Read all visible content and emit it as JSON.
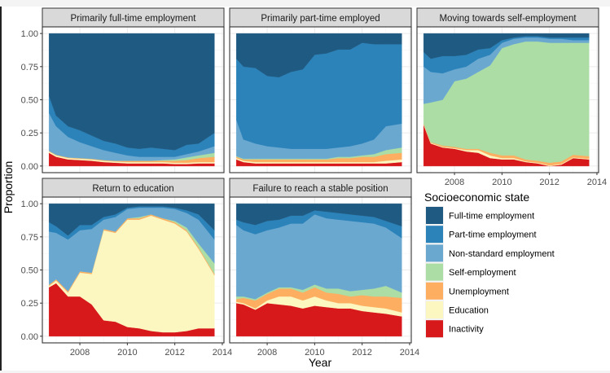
{
  "chart_data": {
    "type": "area",
    "subtype": "stacked-proportion-facets",
    "xlabel": "Year",
    "ylabel": "Proportion",
    "xlim": [
      2006.42,
      2014.07
    ],
    "ylim": [
      -0.05,
      1.05
    ],
    "x_ticks": [
      2008,
      2010,
      2012,
      2014
    ],
    "x_tick_labels": [
      "2008",
      "2010",
      "2012",
      "2014"
    ],
    "y_ticks": [
      0,
      0.25,
      0.5,
      0.75,
      1.0
    ],
    "y_tick_labels": [
      "0.00",
      "0.25",
      "0.50",
      "0.75",
      "1.00"
    ],
    "grid": true,
    "legend": {
      "title": "Socioeconomic state",
      "placement": "bottom-right",
      "entries": [
        {
          "name": "Full-time employment",
          "color": "#1f5a82"
        },
        {
          "name": "Part-time employment",
          "color": "#2b83ba"
        },
        {
          "name": "Non-standard employment",
          "color": "#6ba8d0"
        },
        {
          "name": "Self-employment",
          "color": "#abdda4"
        },
        {
          "name": "Unemployment",
          "color": "#fdae61"
        },
        {
          "name": "Education",
          "color": "#fcf7c0"
        },
        {
          "name": "Inactivity",
          "color": "#d7191c"
        }
      ]
    },
    "stack_order_bottom_to_top": [
      "Inactivity",
      "Education",
      "Unemployment",
      "Self-employment",
      "Non-standard employment",
      "Part-time employment",
      "Full-time employment"
    ],
    "x": [
      2006.7,
      2007.0,
      2007.5,
      2008.0,
      2008.5,
      2009.0,
      2009.5,
      2010.0,
      2010.5,
      2011.0,
      2011.5,
      2012.0,
      2012.5,
      2013.0,
      2013.67
    ],
    "panels": [
      {
        "title": "Primarily full-time employment",
        "series": [
          {
            "name": "Inactivity",
            "values": [
              0.1,
              0.07,
              0.05,
              0.045,
              0.04,
              0.03,
              0.025,
              0.02,
              0.02,
              0.02,
              0.02,
              0.015,
              0.015,
              0.02,
              0.02
            ]
          },
          {
            "name": "Education",
            "values": [
              0.01,
              0.01,
              0.01,
              0.01,
              0.01,
              0.01,
              0.01,
              0.01,
              0.01,
              0.01,
              0.01,
              0.01,
              0.01,
              0.01,
              0.01
            ]
          },
          {
            "name": "Unemployment",
            "values": [
              0.005,
              0.005,
              0.005,
              0.005,
              0.005,
              0.005,
              0.005,
              0.01,
              0.01,
              0.01,
              0.01,
              0.015,
              0.02,
              0.03,
              0.04
            ]
          },
          {
            "name": "Self-employment",
            "values": [
              0,
              0,
              0,
              0,
              0,
              0,
              0,
              0,
              0,
              0,
              0.005,
              0.01,
              0.02,
              0.02,
              0.03
            ]
          },
          {
            "name": "Non-standard employment",
            "values": [
              0.285,
              0.215,
              0.155,
              0.12,
              0.095,
              0.075,
              0.06,
              0.04,
              0.03,
              0.03,
              0.025,
              0.02,
              0.025,
              0.03,
              0.05
            ]
          },
          {
            "name": "Part-time employment",
            "values": [
              0.13,
              0.08,
              0.08,
              0.09,
              0.08,
              0.07,
              0.07,
              0.06,
              0.06,
              0.07,
              0.06,
              0.05,
              0.07,
              0.06,
              0.1
            ]
          },
          {
            "name": "Full-time employment",
            "values": [
              0.47,
              0.62,
              0.7,
              0.73,
              0.77,
              0.81,
              0.83,
              0.86,
              0.87,
              0.86,
              0.87,
              0.88,
              0.84,
              0.83,
              0.75
            ]
          }
        ]
      },
      {
        "title": "Primarily part-time employed",
        "series": [
          {
            "name": "Inactivity",
            "values": [
              0.05,
              0.03,
              0.02,
              0.02,
              0.02,
              0.02,
              0.02,
              0.02,
              0.02,
              0.02,
              0.02,
              0.02,
              0.02,
              0.02,
              0.03
            ]
          },
          {
            "name": "Education",
            "values": [
              0.01,
              0.01,
              0.01,
              0.01,
              0.01,
              0.01,
              0.01,
              0.01,
              0.01,
              0.01,
              0.01,
              0.01,
              0.01,
              0.02,
              0.02
            ]
          },
          {
            "name": "Unemployment",
            "values": [
              0.01,
              0.01,
              0.02,
              0.02,
              0.02,
              0.02,
              0.02,
              0.02,
              0.02,
              0.03,
              0.03,
              0.04,
              0.04,
              0.05,
              0.05
            ]
          },
          {
            "name": "Self-employment",
            "values": [
              0.005,
              0.005,
              0.005,
              0.005,
              0.005,
              0.005,
              0.005,
              0.005,
              0.005,
              0.01,
              0.01,
              0.01,
              0.02,
              0.03,
              0.04
            ]
          },
          {
            "name": "Non-standard employment",
            "values": [
              0.275,
              0.145,
              0.115,
              0.095,
              0.085,
              0.075,
              0.075,
              0.075,
              0.075,
              0.07,
              0.08,
              0.09,
              0.11,
              0.18,
              0.18
            ]
          },
          {
            "name": "Part-time employment",
            "values": [
              0.46,
              0.55,
              0.57,
              0.53,
              0.53,
              0.58,
              0.6,
              0.71,
              0.72,
              0.74,
              0.73,
              0.76,
              0.72,
              0.62,
              0.6
            ]
          },
          {
            "name": "Full-time employment",
            "values": [
              0.19,
              0.25,
              0.26,
              0.32,
              0.33,
              0.29,
              0.27,
              0.16,
              0.15,
              0.12,
              0.12,
              0.07,
              0.08,
              0.08,
              0.08
            ]
          }
        ]
      },
      {
        "title": "Moving towards self-employment",
        "series": [
          {
            "name": "Inactivity",
            "values": [
              0.31,
              0.17,
              0.14,
              0.13,
              0.11,
              0.1,
              0.06,
              0.05,
              0.05,
              0.03,
              0.02,
              0.0,
              0.01,
              0.06,
              0.05
            ]
          },
          {
            "name": "Education",
            "values": [
              0.005,
              0.005,
              0.005,
              0.005,
              0.01,
              0.02,
              0.02,
              0.01,
              0.01,
              0.005,
              0.005,
              0.005,
              0.005,
              0.005,
              0.005
            ]
          },
          {
            "name": "Unemployment",
            "values": [
              0.005,
              0.005,
              0.01,
              0.01,
              0.01,
              0.01,
              0.02,
              0.02,
              0.02,
              0.015,
              0.015,
              0.02,
              0.02,
              0.02,
              0.02
            ]
          },
          {
            "name": "Self-employment",
            "values": [
              0.15,
              0.3,
              0.345,
              0.495,
              0.53,
              0.58,
              0.66,
              0.81,
              0.84,
              0.89,
              0.9,
              0.905,
              0.895,
              0.845,
              0.855
            ]
          },
          {
            "name": "Non-standard employment",
            "values": [
              0.28,
              0.23,
              0.2,
              0.09,
              0.09,
              0.1,
              0.08,
              0.04,
              0.04,
              0.03,
              0.03,
              0.03,
              0.03,
              0.02,
              0.02
            ]
          },
          {
            "name": "Part-time employment",
            "values": [
              0.11,
              0.1,
              0.13,
              0.1,
              0.09,
              0.07,
              0.05,
              0.02,
              0.01,
              0.01,
              0.01,
              0.01,
              0.01,
              0.02,
              0.02
            ]
          },
          {
            "name": "Full-time employment",
            "values": [
              0.14,
              0.19,
              0.17,
              0.17,
              0.16,
              0.12,
              0.11,
              0.05,
              0.03,
              0.02,
              0.02,
              0.03,
              0.03,
              0.03,
              0.03
            ]
          }
        ]
      },
      {
        "title": "Return to education",
        "series": [
          {
            "name": "Inactivity",
            "values": [
              0.37,
              0.4,
              0.3,
              0.3,
              0.24,
              0.12,
              0.11,
              0.07,
              0.06,
              0.04,
              0.03,
              0.03,
              0.04,
              0.06,
              0.06
            ]
          },
          {
            "name": "Education",
            "values": [
              0.01,
              0.02,
              0.03,
              0.18,
              0.23,
              0.68,
              0.67,
              0.81,
              0.82,
              0.87,
              0.85,
              0.82,
              0.75,
              0.6,
              0.4
            ]
          },
          {
            "name": "Unemployment",
            "values": [
              0.01,
              0.01,
              0.01,
              0.01,
              0.01,
              0.01,
              0.01,
              0.01,
              0.01,
              0.01,
              0.01,
              0.01,
              0.01,
              0.01,
              0.01
            ]
          },
          {
            "name": "Self-employment",
            "values": [
              0,
              0,
              0,
              0,
              0,
              0,
              0,
              0,
              0.01,
              0,
              0,
              0.01,
              0.02,
              0.03,
              0.08
            ]
          },
          {
            "name": "Non-standard employment",
            "values": [
              0.4,
              0.35,
              0.39,
              0.31,
              0.33,
              0.07,
              0.11,
              0.07,
              0.07,
              0.05,
              0.08,
              0.09,
              0.11,
              0.18,
              0.18
            ]
          },
          {
            "name": "Part-time employment",
            "values": [
              0.07,
              0.05,
              0.03,
              0.04,
              0.03,
              0.02,
              0.02,
              0.01,
              0.01,
              0.01,
              0.01,
              0.01,
              0.02,
              0.04,
              0.07
            ]
          },
          {
            "name": "Full-time employment",
            "values": [
              0.14,
              0.17,
              0.24,
              0.16,
              0.16,
              0.1,
              0.08,
              0.03,
              0.02,
              0.02,
              0.02,
              0.03,
              0.05,
              0.08,
              0.2
            ]
          }
        ]
      },
      {
        "title": "Failure to reach a stable position",
        "series": [
          {
            "name": "Inactivity",
            "values": [
              0.25,
              0.24,
              0.2,
              0.25,
              0.24,
              0.23,
              0.21,
              0.23,
              0.22,
              0.21,
              0.21,
              0.19,
              0.18,
              0.17,
              0.15
            ]
          },
          {
            "name": "Education",
            "values": [
              0.01,
              0.01,
              0.01,
              0.02,
              0.06,
              0.07,
              0.06,
              0.07,
              0.05,
              0.04,
              0.04,
              0.04,
              0.04,
              0.04,
              0.03
            ]
          },
          {
            "name": "Unemployment",
            "values": [
              0.02,
              0.04,
              0.06,
              0.05,
              0.06,
              0.06,
              0.06,
              0.07,
              0.06,
              0.07,
              0.05,
              0.08,
              0.08,
              0.09,
              0.11
            ]
          },
          {
            "name": "Self-employment",
            "values": [
              0.02,
              0.01,
              0.01,
              0.01,
              0.01,
              0.01,
              0.02,
              0.02,
              0.03,
              0.04,
              0.04,
              0.04,
              0.06,
              0.08,
              0.04
            ]
          },
          {
            "name": "Non-standard employment",
            "values": [
              0.54,
              0.5,
              0.49,
              0.47,
              0.45,
              0.48,
              0.5,
              0.53,
              0.53,
              0.52,
              0.53,
              0.51,
              0.49,
              0.44,
              0.41
            ]
          },
          {
            "name": "Part-time employment",
            "values": [
              0.04,
              0.06,
              0.07,
              0.07,
              0.06,
              0.06,
              0.06,
              0.03,
              0.05,
              0.05,
              0.05,
              0.05,
              0.05,
              0.05,
              0.09
            ]
          },
          {
            "name": "Full-time employment",
            "values": [
              0.12,
              0.14,
              0.16,
              0.13,
              0.12,
              0.09,
              0.09,
              0.05,
              0.06,
              0.07,
              0.08,
              0.09,
              0.1,
              0.13,
              0.17
            ]
          }
        ]
      }
    ]
  }
}
